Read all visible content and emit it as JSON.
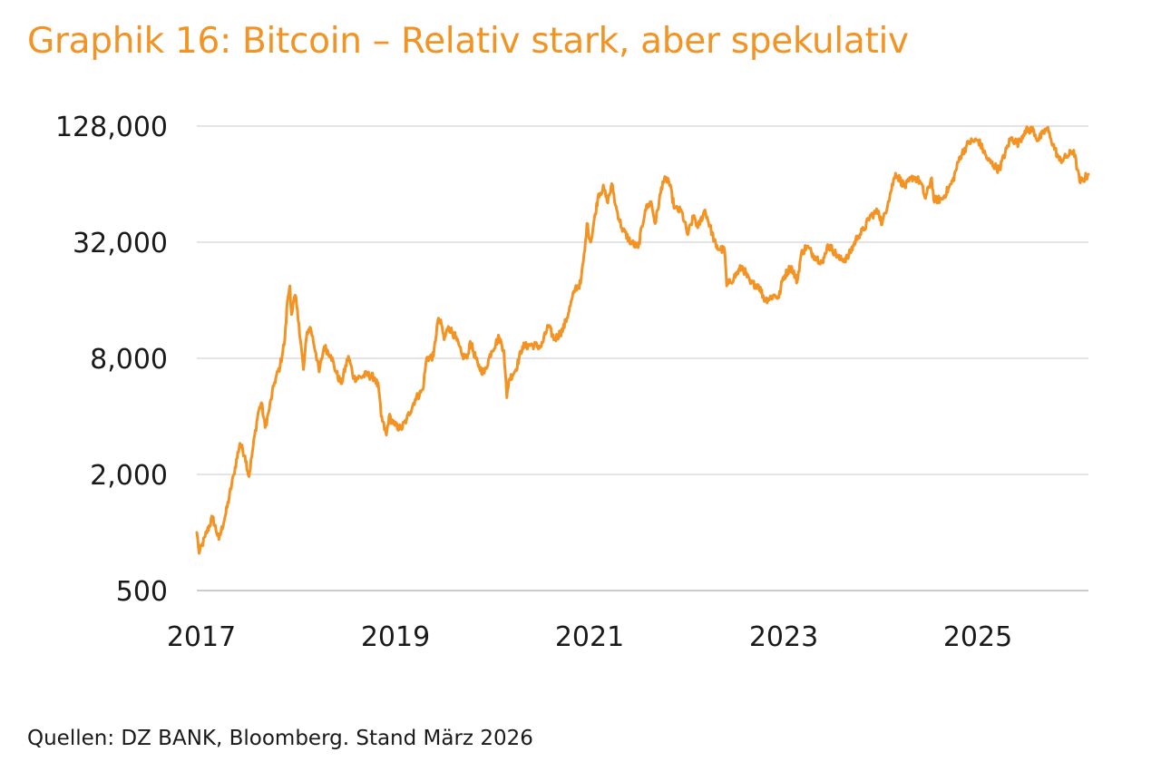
{
  "title": "Graphik 16: Bitcoin – Relativ stark, aber spekulativ",
  "source": "Quellen: DZ BANK, Bloomberg. Stand März 2026",
  "colors": {
    "line": "#F39323",
    "title": "#F39323",
    "grid": "#c8c8c8",
    "text": "#1a1a1a"
  },
  "chart_data": {
    "type": "line",
    "title": "Graphik 16: Bitcoin – Relativ stark, aber spekulativ",
    "xlabel": "",
    "ylabel": "",
    "y_scale": "log2",
    "ylim": [
      500,
      170000
    ],
    "y_ticks": [
      500,
      2000,
      8000,
      32000,
      128000
    ],
    "y_tick_labels": [
      "500",
      "2,000",
      "8,000",
      "32,000",
      "128,000"
    ],
    "x_ticks": [
      2017,
      2019,
      2021,
      2023,
      2025
    ],
    "x_tick_labels": [
      "2017",
      "2019",
      "2021",
      "2023",
      "2025"
    ],
    "grid": true,
    "legend": "none",
    "series": [
      {
        "points": [
          [
            "2017-01-01",
            1000
          ],
          [
            "2017-01-10",
            780
          ],
          [
            "2017-02-01",
            950
          ],
          [
            "2017-03-01",
            1200
          ],
          [
            "2017-03-25",
            920
          ],
          [
            "2017-04-20",
            1250
          ],
          [
            "2017-05-20",
            2000
          ],
          [
            "2017-06-12",
            2900
          ],
          [
            "2017-07-01",
            2500
          ],
          [
            "2017-07-16",
            1950
          ],
          [
            "2017-08-01",
            2800
          ],
          [
            "2017-08-20",
            4200
          ],
          [
            "2017-09-01",
            4700
          ],
          [
            "2017-09-15",
            3500
          ],
          [
            "2017-10-01",
            4400
          ],
          [
            "2017-10-20",
            6000
          ],
          [
            "2017-11-10",
            7300
          ],
          [
            "2017-11-28",
            10000
          ],
          [
            "2017-12-08",
            16000
          ],
          [
            "2017-12-17",
            19000
          ],
          [
            "2017-12-23",
            13500
          ],
          [
            "2018-01-06",
            17000
          ],
          [
            "2018-01-20",
            12000
          ],
          [
            "2018-02-06",
            7000
          ],
          [
            "2018-02-20",
            11000
          ],
          [
            "2018-03-05",
            11500
          ],
          [
            "2018-03-25",
            8500
          ],
          [
            "2018-04-06",
            6800
          ],
          [
            "2018-04-25",
            9200
          ],
          [
            "2018-05-20",
            8300
          ],
          [
            "2018-06-10",
            6700
          ],
          [
            "2018-06-28",
            5900
          ],
          [
            "2018-07-25",
            8200
          ],
          [
            "2018-08-15",
            6300
          ],
          [
            "2018-09-10",
            6400
          ],
          [
            "2018-10-01",
            6600
          ],
          [
            "2018-11-01",
            6350
          ],
          [
            "2018-11-16",
            5600
          ],
          [
            "2018-11-25",
            4000
          ],
          [
            "2018-12-15",
            3200
          ],
          [
            "2018-12-25",
            4000
          ],
          [
            "2019-01-15",
            3600
          ],
          [
            "2019-02-08",
            3450
          ],
          [
            "2019-03-01",
            3850
          ],
          [
            "2019-04-02",
            4900
          ],
          [
            "2019-05-01",
            5500
          ],
          [
            "2019-05-15",
            8000
          ],
          [
            "2019-06-10",
            8200
          ],
          [
            "2019-06-26",
            12500
          ],
          [
            "2019-07-10",
            12000
          ],
          [
            "2019-07-20",
            10000
          ],
          [
            "2019-08-05",
            11700
          ],
          [
            "2019-09-01",
            10300
          ],
          [
            "2019-09-25",
            8300
          ],
          [
            "2019-10-15",
            8000
          ],
          [
            "2019-10-26",
            9800
          ],
          [
            "2019-11-25",
            7300
          ],
          [
            "2019-12-18",
            6700
          ],
          [
            "2020-01-14",
            8700
          ],
          [
            "2020-02-12",
            10300
          ],
          [
            "2020-03-01",
            8800
          ],
          [
            "2020-03-12",
            5000
          ],
          [
            "2020-03-20",
            6200
          ],
          [
            "2020-04-15",
            7000
          ],
          [
            "2020-05-10",
            9200
          ],
          [
            "2020-06-15",
            9400
          ],
          [
            "2020-07-20",
            9200
          ],
          [
            "2020-08-15",
            11800
          ],
          [
            "2020-09-08",
            10000
          ],
          [
            "2020-10-10",
            11300
          ],
          [
            "2020-10-30",
            13700
          ],
          [
            "2020-11-25",
            18500
          ],
          [
            "2020-12-15",
            19500
          ],
          [
            "2020-12-31",
            29000
          ],
          [
            "2021-01-08",
            40000
          ],
          [
            "2021-01-22",
            32000
          ],
          [
            "2021-02-21",
            57000
          ],
          [
            "2021-03-13",
            61000
          ],
          [
            "2021-03-25",
            52000
          ],
          [
            "2021-04-14",
            63500
          ],
          [
            "2021-04-25",
            50000
          ],
          [
            "2021-05-19",
            38000
          ],
          [
            "2021-06-22",
            32000
          ],
          [
            "2021-07-20",
            30000
          ],
          [
            "2021-08-15",
            47000
          ],
          [
            "2021-09-06",
            52000
          ],
          [
            "2021-09-22",
            40000
          ],
          [
            "2021-10-20",
            66000
          ],
          [
            "2021-11-10",
            68000
          ],
          [
            "2021-12-04",
            48000
          ],
          [
            "2021-12-31",
            46000
          ],
          [
            "2022-01-22",
            35000
          ],
          [
            "2022-02-15",
            44000
          ],
          [
            "2022-03-01",
            38000
          ],
          [
            "2022-03-28",
            47000
          ],
          [
            "2022-05-10",
            30000
          ],
          [
            "2022-06-10",
            29000
          ],
          [
            "2022-06-18",
            19000
          ],
          [
            "2022-07-15",
            21000
          ],
          [
            "2022-08-15",
            24000
          ],
          [
            "2022-09-15",
            19500
          ],
          [
            "2022-10-15",
            19200
          ],
          [
            "2022-11-09",
            16000
          ],
          [
            "2022-12-15",
            17000
          ],
          [
            "2022-12-31",
            16500
          ],
          [
            "2023-01-15",
            20800
          ],
          [
            "2023-02-15",
            24000
          ],
          [
            "2023-03-10",
            20000
          ],
          [
            "2023-03-25",
            27800
          ],
          [
            "2023-04-14",
            30500
          ],
          [
            "2023-05-15",
            27000
          ],
          [
            "2023-06-15",
            25000
          ],
          [
            "2023-06-30",
            30500
          ],
          [
            "2023-07-15",
            30000
          ],
          [
            "2023-08-18",
            26000
          ],
          [
            "2023-09-15",
            26500
          ],
          [
            "2023-10-24",
            34500
          ],
          [
            "2023-11-15",
            37000
          ],
          [
            "2023-12-08",
            43500
          ],
          [
            "2024-01-10",
            46500
          ],
          [
            "2024-01-23",
            39500
          ],
          [
            "2024-02-15",
            52000
          ],
          [
            "2024-03-14",
            73000
          ],
          [
            "2024-04-18",
            62000
          ],
          [
            "2024-05-20",
            70000
          ],
          [
            "2024-06-15",
            66000
          ],
          [
            "2024-07-05",
            54000
          ],
          [
            "2024-07-28",
            69000
          ],
          [
            "2024-08-05",
            53000
          ],
          [
            "2024-09-06",
            53500
          ],
          [
            "2024-10-15",
            66000
          ],
          [
            "2024-11-12",
            89000
          ],
          [
            "2024-12-05",
            100000
          ],
          [
            "2024-12-17",
            106000
          ],
          [
            "2025-01-20",
            108000
          ],
          [
            "2025-02-26",
            85000
          ],
          [
            "2025-04-08",
            76000
          ],
          [
            "2025-05-22",
            111000
          ],
          [
            "2025-06-20",
            104000
          ],
          [
            "2025-07-14",
            121000
          ],
          [
            "2025-08-14",
            123000
          ],
          [
            "2025-09-01",
            108000
          ],
          [
            "2025-10-06",
            125000
          ],
          [
            "2025-10-20",
            110000
          ],
          [
            "2025-11-21",
            85000
          ],
          [
            "2025-12-15",
            88000
          ],
          [
            "2026-01-14",
            96000
          ],
          [
            "2026-02-05",
            66000
          ],
          [
            "2026-02-20",
            68000
          ],
          [
            "2026-03-10",
            72000
          ]
        ]
      }
    ]
  }
}
